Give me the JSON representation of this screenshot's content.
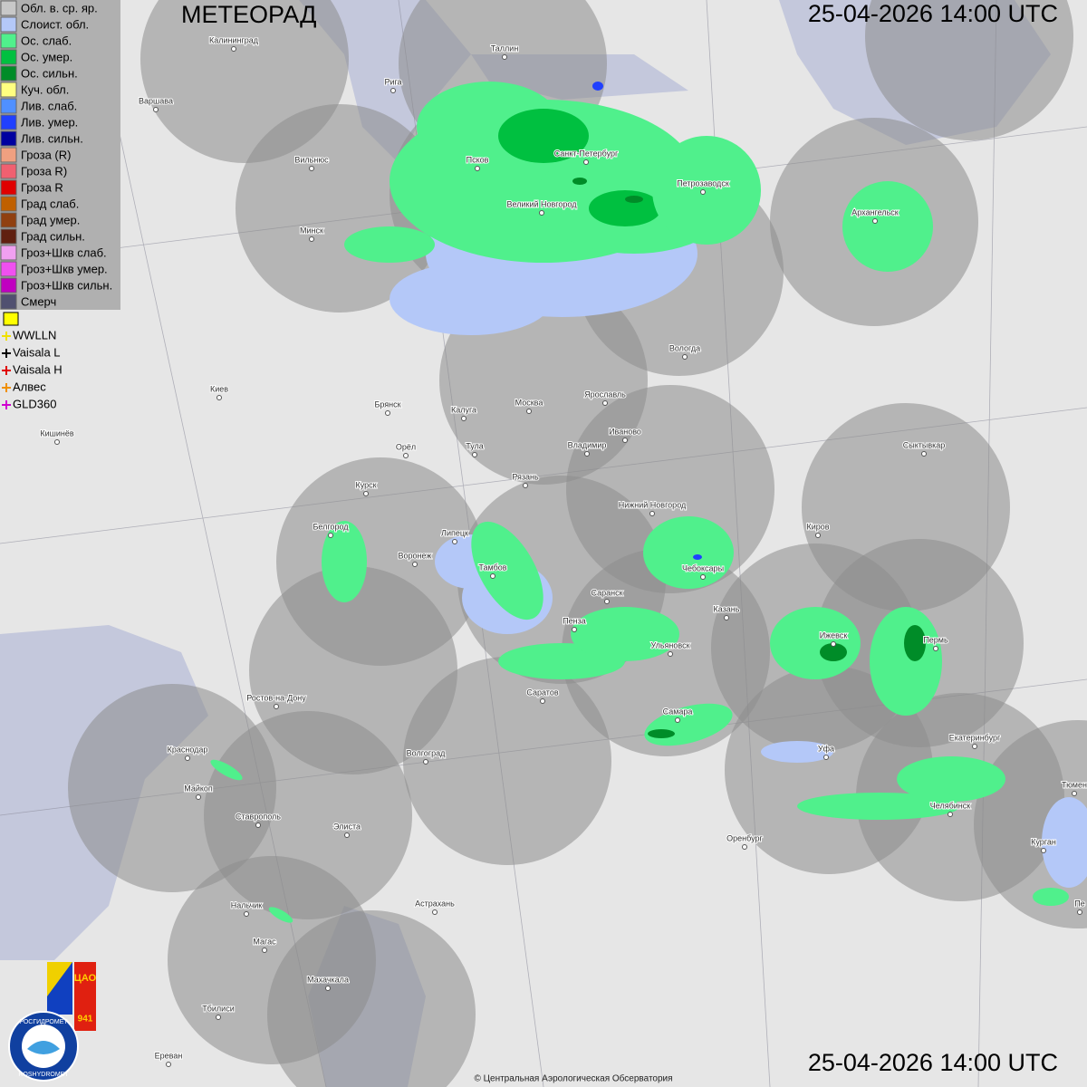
{
  "header": {
    "title": "МЕТЕОРАД",
    "timestamp": "25-04-2026  14:00 UTC"
  },
  "legend": {
    "items": [
      {
        "label": "Обл. в. ср. яр.",
        "color": "#c8c8c8"
      },
      {
        "label": "Слоист. обл.",
        "color": "#b4c8f8"
      },
      {
        "label": "Ос. слаб.",
        "color": "#50f08c"
      },
      {
        "label": "Ос. умер.",
        "color": "#00c040"
      },
      {
        "label": "Ос. сильн.",
        "color": "#008c28"
      },
      {
        "label": "Куч. обл.",
        "color": "#ffff80"
      },
      {
        "label": "Лив. слаб.",
        "color": "#5090ff"
      },
      {
        "label": "Лив. умер.",
        "color": "#2040ff"
      },
      {
        "label": "Лив. сильн.",
        "color": "#0000a0"
      },
      {
        "label": "Гроза (R)",
        "color": "#f0a080"
      },
      {
        "label": "Гроза R)",
        "color": "#f06070"
      },
      {
        "label": "Гроза R",
        "color": "#e00000"
      },
      {
        "label": "Град слаб.",
        "color": "#c06000"
      },
      {
        "label": "Град умер.",
        "color": "#904010"
      },
      {
        "label": "Град сильн.",
        "color": "#602010"
      },
      {
        "label": "Гроз+Шкв слаб.",
        "color": "#f0a0f0"
      },
      {
        "label": "Гроз+Шкв умер.",
        "color": "#f050f0"
      },
      {
        "label": "Гроз+Шкв сильн.",
        "color": "#c000c0"
      },
      {
        "label": "Смерч",
        "color": "#505070"
      }
    ],
    "lightning": [
      {
        "label": "WWLLN",
        "color": "#f0e000"
      },
      {
        "label": "Vaisala L",
        "color": "#000000"
      },
      {
        "label": "Vaisala H",
        "color": "#e00000"
      },
      {
        "label": "Алвес",
        "color": "#f09000"
      },
      {
        "label": "GLD360",
        "color": "#d000d0"
      }
    ]
  },
  "cities": [
    "Калининград",
    "Таллин",
    "Рига",
    "Варшава",
    "Вильнюс",
    "Псков",
    "Санкт-Петербург",
    "Петрозаводск",
    "Архангельск",
    "Великий Новгород",
    "Минск",
    "Вологда",
    "Киев",
    "Брянск",
    "Калуга",
    "Москва",
    "Ярославль",
    "Кишинёв",
    "Иваново",
    "Орёл",
    "Тула",
    "Владимир",
    "Сыктывкар",
    "Рязань",
    "Курск",
    "Нижний Новгород",
    "Киров",
    "Белгород",
    "Липецк",
    "Воронеж",
    "Тамбов",
    "Чебоксары",
    "Саранск",
    "Казань",
    "Пенза",
    "Ижевск",
    "Пермь",
    "Ульяновск",
    "Саратов",
    "Ростов-на-Дону",
    "Самара",
    "Екатеринбург",
    "Уфа",
    "Краснодар",
    "Волгоград",
    "Майкоп",
    "Челябинск",
    "Тюмен",
    "Ставрополь",
    "Элиста",
    "Оренбург",
    "Курган",
    "Астрахань",
    "Пе",
    "Нальчик",
    "Магас",
    "Махачкала",
    "Тбилиси",
    "Ереван"
  ],
  "logo": {
    "cao": "ЦАО",
    "year": "941",
    "ru": "РОСГИДРОМЕТ",
    "en": "ROSHYDROMET"
  },
  "footer": {
    "copyright": "© Центральная Аэрологическая Обсерватория"
  }
}
